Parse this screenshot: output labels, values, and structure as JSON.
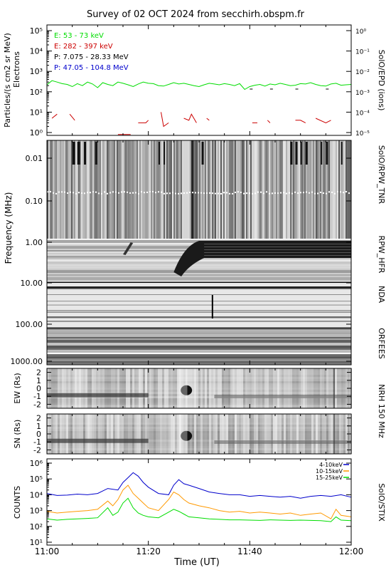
{
  "title": "Survey of 02 OCT 2024 from secchirh.obspm.fr",
  "time_axis": {
    "label": "Time (UT)",
    "ticks": [
      "11:00",
      "11:20",
      "11:40",
      "12:00"
    ],
    "range": [
      "11:00",
      "12:00"
    ]
  },
  "chart_data": [
    {
      "type": "line",
      "panel": "particles",
      "ylabel": "Particles/(s cm2 sr MeV)",
      "ylabel2": "Electrons",
      "right_label": "SolO/EPD (ions)",
      "y_scale": "log",
      "ylim": [
        1,
        100000
      ],
      "y_ticks": [
        "10⁰",
        "10¹",
        "10²",
        "10³",
        "10⁴",
        "10⁵"
      ],
      "y2_scale": "log",
      "y2lim": [
        1e-05,
        1
      ],
      "y2_ticks": [
        "10⁻⁵",
        "10⁻⁴",
        "10⁻³",
        "10⁻²",
        "10⁻¹",
        "10⁰"
      ],
      "legend": [
        {
          "text": "E: 53 - 73 keV",
          "color": "#00dd00"
        },
        {
          "text": "E: 282 - 397 keV",
          "color": "#cc0000"
        },
        {
          "text": "P: 7.075 - 28.33 MeV",
          "color": "#000000"
        },
        {
          "text": "P: 47.05 - 104.8 MeV",
          "color": "#0000cc"
        }
      ],
      "series": [
        {
          "name": "E: 53 - 73 keV",
          "color": "#00dd00",
          "x": [
            0,
            1,
            2,
            3,
            4,
            5,
            6,
            7,
            8,
            9,
            10,
            11,
            12,
            13,
            14,
            15,
            16,
            17,
            18,
            19,
            20,
            21,
            22,
            23,
            24,
            25,
            26,
            27,
            28,
            29,
            30,
            31,
            32,
            33,
            34,
            35,
            36,
            37,
            38,
            39,
            40,
            41,
            42,
            43,
            44,
            45,
            46,
            47,
            48,
            49,
            50,
            51,
            52,
            53,
            54,
            55,
            56,
            57,
            58,
            59,
            60
          ],
          "y": [
            220,
            350,
            300,
            250,
            230,
            180,
            250,
            200,
            300,
            240,
            160,
            280,
            230,
            200,
            300,
            260,
            220,
            180,
            240,
            300,
            260,
            250,
            200,
            190,
            230,
            280,
            240,
            260,
            230,
            200,
            180,
            220,
            260,
            240,
            220,
            250,
            230,
            200,
            250,
            130,
            180,
            210,
            230,
            190,
            240,
            220,
            260,
            230,
            200,
            210,
            250,
            240,
            280,
            230,
            200,
            190,
            240,
            260,
            210,
            220,
            230
          ]
        },
        {
          "name": "E: 282 - 397 keV",
          "color": "#cc0000",
          "x": [
            0,
            1,
            2,
            3.5,
            4.5,
            5.5,
            13,
            14,
            15,
            16.5,
            17.5,
            18,
            19.5,
            20,
            21,
            22.5,
            23,
            24,
            26,
            27,
            28,
            28.5,
            29.5,
            30.5,
            31.5,
            32,
            33.5,
            34,
            35,
            40.5,
            41.5,
            42.5,
            43.5,
            44,
            48,
            49,
            50,
            51,
            52,
            53,
            55,
            56,
            57
          ],
          "y": [
            null,
            5,
            8,
            null,
            8,
            4,
            null,
            0.8,
            0.8,
            0.8,
            null,
            3,
            3,
            4,
            null,
            10,
            2,
            3,
            null,
            5,
            4,
            8,
            3,
            null,
            5,
            4,
            null,
            5,
            null,
            3,
            3,
            null,
            4,
            3,
            null,
            4,
            4,
            3,
            null,
            5,
            3,
            4,
            null
          ]
        }
      ]
    },
    {
      "type": "heatmap",
      "panel": "radio",
      "ylabel": "Frequency (MHz)",
      "y_scale": "log",
      "y_ticks": [
        "0.01",
        "0.10",
        "1.00",
        "10.00",
        "100.00",
        "1000.00"
      ],
      "right_labels": [
        "SolO/RPW_TNR",
        "RPW_HFR",
        "NDA",
        "ORFEES"
      ]
    },
    {
      "type": "heatmap",
      "panel": "nrh_ew",
      "ylabel": "EW (Rs)",
      "y_ticks": [
        "2",
        "1",
        "0",
        "-1",
        "-2"
      ],
      "ylim": [
        -2.5,
        2.5
      ]
    },
    {
      "type": "heatmap",
      "panel": "nrh_sn",
      "ylabel": "SN (Rs)",
      "y_ticks": [
        "2",
        "1",
        "0",
        "-1",
        "-2"
      ],
      "ylim": [
        -2.5,
        2.5
      ],
      "right_label": "NRH 150 MHz"
    },
    {
      "type": "line",
      "panel": "stix",
      "ylabel": "COUNTS",
      "right_label": "SolO/STIX",
      "y_scale": "log",
      "ylim": [
        10,
        1000000
      ],
      "y_ticks": [
        "10¹",
        "10²",
        "10³",
        "10⁴",
        "10⁵",
        "10⁶"
      ],
      "legend": [
        {
          "text": "4-10keV",
          "color": "#0000cc"
        },
        {
          "text": "10-15keV",
          "color": "#ff9900"
        },
        {
          "text": "15-25keV",
          "color": "#00dd00"
        }
      ],
      "series": [
        {
          "name": "4-10keV",
          "color": "#0000cc",
          "x": [
            0,
            2,
            4,
            6,
            8,
            10,
            12,
            14,
            15,
            16,
            17,
            18,
            19,
            20,
            22,
            24,
            25,
            26,
            27,
            28,
            30,
            32,
            34,
            36,
            38,
            40,
            42,
            44,
            46,
            48,
            50,
            52,
            54,
            56,
            58,
            60
          ],
          "y": [
            12000,
            9000,
            9500,
            11000,
            10000,
            12000,
            25000,
            20000,
            60000,
            120000,
            250000,
            150000,
            60000,
            30000,
            12000,
            10000,
            40000,
            90000,
            50000,
            40000,
            25000,
            15000,
            12000,
            10000,
            10000,
            8000,
            9000,
            8000,
            7000,
            8000,
            6000,
            8000,
            9000,
            8000,
            10000,
            7000
          ]
        },
        {
          "name": "10-15keV",
          "color": "#ff9900",
          "x": [
            0,
            2,
            4,
            6,
            8,
            10,
            12,
            13,
            14,
            15,
            16,
            17,
            18,
            19,
            20,
            22,
            24,
            25,
            26,
            27,
            28,
            30,
            32,
            34,
            36,
            38,
            40,
            42,
            44,
            46,
            48,
            50,
            52,
            54,
            56,
            57,
            58,
            60
          ],
          "y": [
            900,
            700,
            800,
            900,
            1000,
            1200,
            4000,
            2000,
            5000,
            20000,
            40000,
            12000,
            6000,
            3000,
            1500,
            1000,
            5000,
            15000,
            10000,
            5000,
            3000,
            2000,
            1500,
            1000,
            800,
            900,
            700,
            800,
            700,
            600,
            700,
            500,
            600,
            700,
            300,
            1200,
            500,
            400
          ]
        },
        {
          "name": "15-25keV",
          "color": "#00dd00",
          "x": [
            0,
            2,
            4,
            6,
            8,
            10,
            12,
            13,
            14,
            15,
            16,
            17,
            18,
            19,
            20,
            22,
            24,
            25,
            26,
            27,
            28,
            30,
            32,
            34,
            36,
            38,
            40,
            42,
            44,
            46,
            48,
            50,
            52,
            54,
            56,
            57,
            58,
            60
          ],
          "y": [
            300,
            250,
            280,
            300,
            320,
            350,
            1500,
            500,
            800,
            3000,
            6000,
            1500,
            700,
            500,
            400,
            350,
            800,
            1200,
            900,
            600,
            400,
            350,
            300,
            280,
            260,
            260,
            250,
            240,
            260,
            250,
            240,
            250,
            240,
            230,
            200,
            400,
            250,
            230
          ]
        }
      ]
    }
  ]
}
